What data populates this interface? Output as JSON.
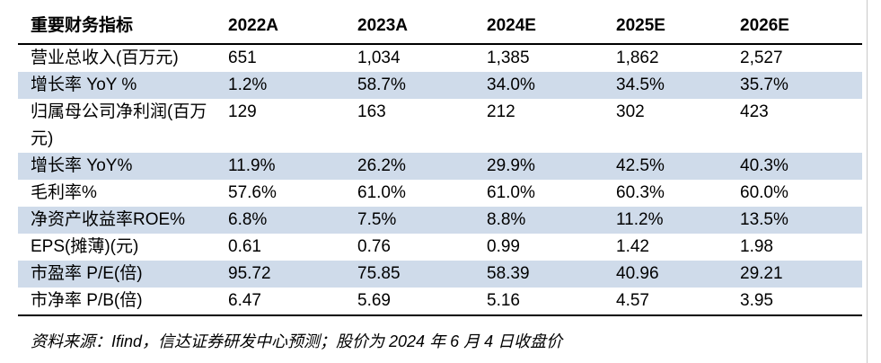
{
  "table": {
    "headers": [
      "重要财务指标",
      "2022A",
      "2023A",
      "2024E",
      "2025E",
      "2026E"
    ],
    "rows": [
      {
        "label": "营业总收入(百万元)",
        "values": [
          "651",
          "1,034",
          "1,385",
          "1,862",
          "2,527"
        ]
      },
      {
        "label": "增长率 YoY %",
        "values": [
          "1.2%",
          "58.7%",
          "34.0%",
          "34.5%",
          "35.7%"
        ]
      },
      {
        "label": "归属母公司净利润(百万元)",
        "values": [
          "129",
          "163",
          "212",
          "302",
          "423"
        ]
      },
      {
        "label": "增长率 YoY%",
        "values": [
          "11.9%",
          "26.2%",
          "29.9%",
          "42.5%",
          "40.3%"
        ]
      },
      {
        "label": "毛利率%",
        "values": [
          "57.6%",
          "61.0%",
          "61.0%",
          "60.3%",
          "60.0%"
        ]
      },
      {
        "label": "净资产收益率ROE%",
        "values": [
          "6.8%",
          "7.5%",
          "8.8%",
          "11.2%",
          "13.5%"
        ]
      },
      {
        "label": "EPS(摊薄)(元)",
        "values": [
          "0.61",
          "0.76",
          "0.99",
          "1.42",
          "1.98"
        ]
      },
      {
        "label": "市盈率 P/E(倍)",
        "values": [
          "95.72",
          "75.85",
          "58.39",
          "40.96",
          "29.21"
        ]
      },
      {
        "label": "市净率 P/B(倍)",
        "values": [
          "6.47",
          "5.69",
          "5.16",
          "4.57",
          "3.95"
        ]
      }
    ]
  },
  "source_note": "资料来源：Ifind，信达证券研发中心预测；股价为 2024 年 6 月 4 日收盘价",
  "colors": {
    "row_shade": "#cfdbea",
    "rule": "#000000"
  }
}
